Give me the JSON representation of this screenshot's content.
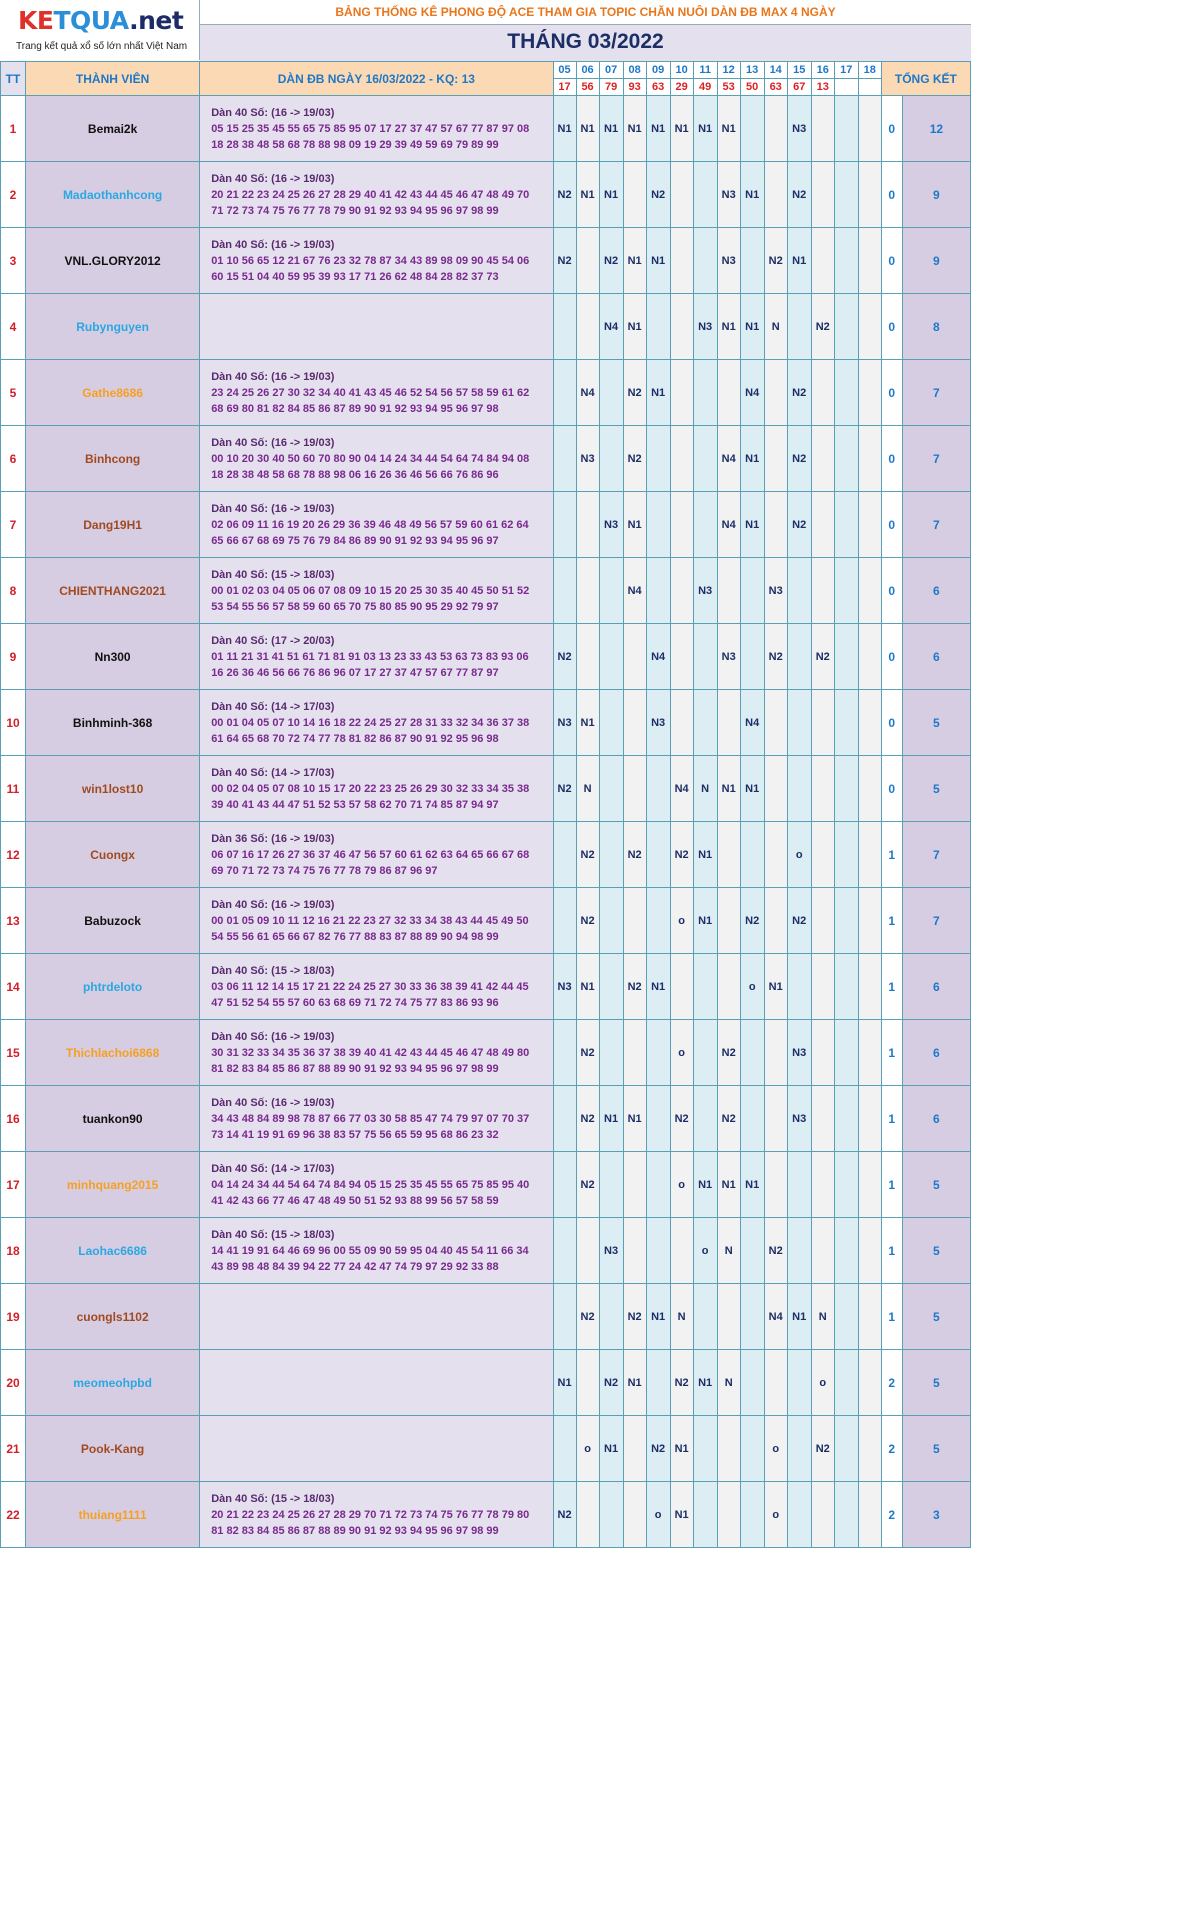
{
  "header": {
    "logo_ke": "KE",
    "logo_tqua": "TQUA",
    "logo_net": ".net",
    "logo_tagline": "Trang kết quả xổ số lớn nhất Việt Nam",
    "title": "BẢNG THỐNG KÊ PHONG ĐỘ ACE THAM GIA TOPIC CHĂN NUÔI DÀN ĐB MAX 4 NGÀY",
    "month": "THÁNG 03/2022"
  },
  "columns": {
    "tt": "TT",
    "member": "THÀNH VIÊN",
    "dan": "DÀN ĐB NGÀY 16/03/2022 - KQ: 13",
    "summary": "TỔNG KẾT",
    "days": [
      "05",
      "06",
      "07",
      "08",
      "09",
      "10",
      "11",
      "12",
      "13",
      "14",
      "15",
      "16",
      "17",
      "18"
    ],
    "results": [
      "17",
      "56",
      "79",
      "93",
      "63",
      "29",
      "49",
      "53",
      "50",
      "63",
      "67",
      "13",
      "",
      ""
    ]
  },
  "colors": {
    "black": "#111111",
    "blue": "#2aa8e0",
    "orange": "#f5a020",
    "brown": "#a04a20"
  },
  "rows": [
    {
      "tt": "1",
      "name": "Bemai2k",
      "color": "black",
      "l0": "Dàn 40 Số: (16 -> 19/03)",
      "l1": "05 15 25 35 45 55 65 75 85 95 07 17 27 37 47 57 67 77 87 97 08",
      "l2": "18 28 38 48 58 68 78 88 98 09 19 29 39 49 59 69 79 89 99",
      "cells": [
        "N1",
        "N1",
        "N1",
        "N1",
        "N1",
        "N1",
        "N1",
        "N1",
        "",
        "",
        "N3",
        "",
        "",
        ""
      ],
      "z": "0",
      "total": "12"
    },
    {
      "tt": "2",
      "name": "Madaothanhcong",
      "color": "blue",
      "l0": "Dàn 40 Số: (16 -> 19/03)",
      "l1": "20 21 22 23 24 25 26 27 28 29 40 41 42 43 44 45 46 47 48 49 70",
      "l2": "71 72 73 74 75 76 77 78 79 90 91 92 93 94 95 96 97 98 99",
      "cells": [
        "N2",
        "N1",
        "N1",
        "",
        "N2",
        "",
        "",
        "N3",
        "N1",
        "",
        "N2",
        "",
        "",
        ""
      ],
      "z": "0",
      "total": "9"
    },
    {
      "tt": "3",
      "name": "VNL.GLORY2012",
      "color": "black",
      "l0": "Dàn 40 Số: (16 -> 19/03)",
      "l1": "01 10 56 65 12 21 67 76 23 32 78 87 34 43 89 98 09 90 45 54 06",
      "l2": "60 15 51 04 40 59 95 39 93 17 71 26 62 48 84 28 82 37 73",
      "cells": [
        "N2",
        "",
        "N2",
        "N1",
        "N1",
        "",
        "",
        "N3",
        "",
        "N2",
        "N1",
        "",
        "",
        ""
      ],
      "z": "0",
      "total": "9"
    },
    {
      "tt": "4",
      "name": "Rubynguyen",
      "color": "blue",
      "l0": "",
      "l1": "",
      "l2": "",
      "cells": [
        "",
        "",
        "N4",
        "N1",
        "",
        "",
        "N3",
        "N1",
        "N1",
        "N",
        "",
        "N2",
        "",
        ""
      ],
      "z": "0",
      "total": "8"
    },
    {
      "tt": "5",
      "name": "Gathe8686",
      "color": "orange",
      "l0": "Dàn 40 Số: (16 -> 19/03)",
      "l1": "23 24 25 26 27 30 32 34 40 41 43 45 46 52 54 56 57 58 59 61 62",
      "l2": "68 69 80 81 82 84 85 86 87 89 90 91 92 93 94 95 96 97 98",
      "cells": [
        "",
        "N4",
        "",
        "N2",
        "N1",
        "",
        "",
        "",
        "N4",
        "",
        "N2",
        "",
        "",
        ""
      ],
      "z": "0",
      "total": "7"
    },
    {
      "tt": "6",
      "name": "Binhcong",
      "color": "brown",
      "l0": "Dàn 40 Số: (16 -> 19/03)",
      "l1": "00 10 20 30 40 50 60 70 80 90 04 14 24 34 44 54 64 74 84 94 08",
      "l2": "18 28 38 48 58 68 78 88 98 06 16 26 36 46 56 66 76 86 96",
      "cells": [
        "",
        "N3",
        "",
        "N2",
        "",
        "",
        "",
        "N4",
        "N1",
        "",
        "N2",
        "",
        "",
        ""
      ],
      "z": "0",
      "total": "7"
    },
    {
      "tt": "7",
      "name": "Dang19H1",
      "color": "brown",
      "l0": "Dàn 40 Số: (16 -> 19/03)",
      "l1": "02 06 09 11 16 19 20 26 29 36 39 46 48 49 56 57 59 60 61 62 64",
      "l2": "65 66 67 68 69 75 76 79 84 86 89 90 91 92 93 94 95 96 97",
      "cells": [
        "",
        "",
        "N3",
        "N1",
        "",
        "",
        "",
        "N4",
        "N1",
        "",
        "N2",
        "",
        "",
        ""
      ],
      "z": "0",
      "total": "7"
    },
    {
      "tt": "8",
      "name": "CHIENTHANG2021",
      "color": "brown",
      "l0": "Dàn 40 Số: (15 -> 18/03)",
      "l1": "00 01 02 03 04 05 06 07 08 09 10 15 20 25 30 35 40 45 50 51 52",
      "l2": "53 54 55 56 57 58 59 60 65 70 75 80 85 90 95 29 92 79 97",
      "cells": [
        "",
        "",
        "",
        "N4",
        "",
        "",
        "N3",
        "",
        "",
        "N3",
        "",
        "",
        "",
        ""
      ],
      "z": "0",
      "total": "6"
    },
    {
      "tt": "9",
      "name": "Nn300",
      "color": "black",
      "l0": "Dàn 40 Số: (17 -> 20/03)",
      "l1": "01 11 21 31 41 51 61 71 81 91 03 13 23 33 43 53 63 73 83 93 06",
      "l2": "16 26 36 46 56 66 76 86 96 07 17 27 37 47 57 67 77 87 97",
      "cells": [
        "N2",
        "",
        "",
        "",
        "N4",
        "",
        "",
        "N3",
        "",
        "N2",
        "",
        "N2",
        "",
        ""
      ],
      "z": "0",
      "total": "6"
    },
    {
      "tt": "10",
      "name": "Binhminh-368",
      "color": "black",
      "l0": "Dàn 40 Số: (14 -> 17/03)",
      "l1": "00 01 04 05 07 10 14 16 18 22 24 25 27 28 31 33 32 34 36 37 38",
      "l2": "61 64 65 68 70 72 74 77 78 81 82 86 87 90 91 92 95 96 98",
      "cells": [
        "N3",
        "N1",
        "",
        "",
        "N3",
        "",
        "",
        "",
        "N4",
        "",
        "",
        "",
        "",
        ""
      ],
      "z": "0",
      "total": "5"
    },
    {
      "tt": "11",
      "name": "win1lost10",
      "color": "brown",
      "l0": "Dàn 40 Số: (14 -> 17/03)",
      "l1": "00 02 04 05 07 08 10 15 17 20 22 23 25 26 29 30 32 33 34 35 38",
      "l2": "39 40 41 43 44 47 51 52 53 57 58 62 70 71 74 85 87 94 97",
      "cells": [
        "N2",
        "N",
        "",
        "",
        "",
        "N4",
        "N",
        "N1",
        "N1",
        "",
        "",
        "",
        "",
        ""
      ],
      "z": "0",
      "total": "5"
    },
    {
      "tt": "12",
      "name": "Cuongx",
      "color": "brown",
      "l0": "Dàn 36 Số: (16 -> 19/03)",
      "l1": "06 07 16 17 26 27 36 37 46 47 56 57 60 61 62 63 64 65 66 67 68",
      "l2": "69 70 71 72 73 74 75 76 77 78 79 86 87 96 97",
      "cells": [
        "",
        "N2",
        "",
        "N2",
        "",
        "N2",
        "N1",
        "",
        "",
        "",
        "o",
        "",
        "",
        ""
      ],
      "z": "1",
      "total": "7"
    },
    {
      "tt": "13",
      "name": "Babuzock",
      "color": "black",
      "l0": "Dàn 40 Số: (16 -> 19/03)",
      "l1": "00 01 05 09 10 11 12 16 21 22 23 27 32 33 34 38 43 44 45 49 50",
      "l2": "54 55 56 61 65 66 67 82 76 77 88 83 87 88 89 90 94 98 99",
      "cells": [
        "",
        "N2",
        "",
        "",
        "",
        "o",
        "N1",
        "",
        "N2",
        "",
        "N2",
        "",
        "",
        ""
      ],
      "z": "1",
      "total": "7"
    },
    {
      "tt": "14",
      "name": "phtrdeloto",
      "color": "blue",
      "l0": "Dàn 40 Số: (15 -> 18/03)",
      "l1": "03 06 11 12 14 15 17 21 22 24 25 27 30 33 36 38 39 41 42 44 45",
      "l2": "47 51 52 54 55 57 60 63 68 69 71 72 74 75 77 83 86 93 96",
      "cells": [
        "N3",
        "N1",
        "",
        "N2",
        "N1",
        "",
        "",
        "",
        "o",
        "N1",
        "",
        "",
        "",
        ""
      ],
      "z": "1",
      "total": "6"
    },
    {
      "tt": "15",
      "name": "Thichlachoi6868",
      "color": "orange",
      "l0": "Dàn 40 Số: (16 -> 19/03)",
      "l1": "30 31 32 33 34 35 36 37 38 39 40 41 42 43 44 45 46 47 48 49 80",
      "l2": "81 82 83 84 85 86 87 88 89 90 91 92 93 94 95 96 97 98 99",
      "cells": [
        "",
        "N2",
        "",
        "",
        "",
        "o",
        "",
        "N2",
        "",
        "",
        "N3",
        "",
        "",
        ""
      ],
      "z": "1",
      "total": "6"
    },
    {
      "tt": "16",
      "name": "tuankon90",
      "color": "black",
      "l0": "Dàn 40 Số: (16 -> 19/03)",
      "l1": "34 43 48 84 89 98 78 87 66 77 03 30 58 85 47 74 79 97 07 70 37",
      "l2": "73 14 41 19 91 69 96 38 83 57 75 56 65 59 95 68 86 23 32",
      "cells": [
        "",
        "N2",
        "N1",
        "N1",
        "",
        "N2",
        "",
        "N2",
        "",
        "",
        "N3",
        "",
        "",
        ""
      ],
      "z": "1",
      "total": "6"
    },
    {
      "tt": "17",
      "name": "minhquang2015",
      "color": "orange",
      "l0": "Dàn 40 Số: (14 -> 17/03)",
      "l1": "04 14 24 34 44 54 64 74 84 94 05 15 25 35 45 55 65 75 85 95 40",
      "l2": "41 42 43 66 77 46 47 48 49 50 51 52 93 88 99 56 57 58 59",
      "cells": [
        "",
        "N2",
        "",
        "",
        "",
        "o",
        "N1",
        "N1",
        "N1",
        "",
        "",
        "",
        "",
        ""
      ],
      "z": "1",
      "total": "5"
    },
    {
      "tt": "18",
      "name": "Laohac6686",
      "color": "blue",
      "l0": "Dàn 40 Số: (15 -> 18/03)",
      "l1": "14 41 19 91 64 46 69 96 00 55 09 90 59 95 04 40 45 54 11 66 34",
      "l2": "43 89 98 48 84 39 94 22 77 24 42 47 74 79 97 29 92 33 88",
      "cells": [
        "",
        "",
        "N3",
        "",
        "",
        "",
        "o",
        "N",
        "",
        "N2",
        "",
        "",
        "",
        ""
      ],
      "z": "1",
      "total": "5"
    },
    {
      "tt": "19",
      "name": "cuongls1102",
      "color": "brown",
      "l0": "",
      "l1": "",
      "l2": "",
      "cells": [
        "",
        "N2",
        "",
        "N2",
        "N1",
        "N",
        "",
        "",
        "",
        "N4",
        "N1",
        "N",
        "",
        ""
      ],
      "z": "1",
      "total": "5"
    },
    {
      "tt": "20",
      "name": "meomeohpbd",
      "color": "blue",
      "l0": "",
      "l1": "",
      "l2": "",
      "cells": [
        "N1",
        "",
        "N2",
        "N1",
        "",
        "N2",
        "N1",
        "N",
        "",
        "",
        "",
        "o",
        "",
        ""
      ],
      "z": "2",
      "total": "5"
    },
    {
      "tt": "21",
      "name": "Pook-Kang",
      "color": "brown",
      "l0": "",
      "l1": "",
      "l2": "",
      "cells": [
        "",
        "o",
        "N1",
        "",
        "N2",
        "N1",
        "",
        "",
        "",
        "o",
        "",
        "N2",
        "",
        ""
      ],
      "z": "2",
      "total": "5"
    },
    {
      "tt": "22",
      "name": "thuiang1111",
      "color": "orange",
      "l0": "Dàn 40 Số: (15 -> 18/03)",
      "l1": "20 21 22 23 24 25 26 27 28 29 70 71 72 73 74 75 76 77 78 79 80",
      "l2": "81 82 83 84 85 86 87 88 89 90 91 92 93 94 95 96 97 98 99",
      "cells": [
        "N2",
        "",
        "",
        "",
        "o",
        "N1",
        "",
        "",
        "",
        "o",
        "",
        "",
        "",
        ""
      ],
      "z": "2",
      "total": "3"
    }
  ]
}
